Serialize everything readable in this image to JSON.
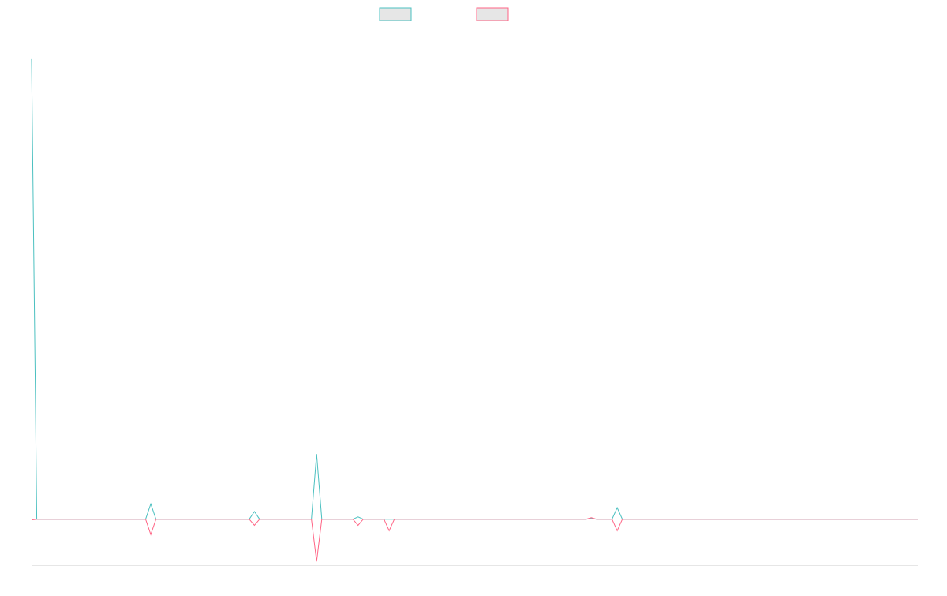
{
  "chart_data": {
    "type": "line",
    "x_count": 172,
    "ylim": [
      -60,
      640
    ],
    "grid": false,
    "legend_position": "top-center",
    "series": [
      {
        "name": "",
        "color": "#4bc0c0",
        "points": [
          [
            0,
            600
          ],
          [
            1,
            0
          ],
          [
            22,
            0
          ],
          [
            23,
            20
          ],
          [
            24,
            0
          ],
          [
            42,
            0
          ],
          [
            43,
            10
          ],
          [
            44,
            0
          ],
          [
            54,
            0
          ],
          [
            55,
            85
          ],
          [
            56,
            0
          ],
          [
            62,
            0
          ],
          [
            63,
            3
          ],
          [
            64,
            0
          ],
          [
            68,
            0
          ],
          [
            69,
            0
          ],
          [
            70,
            0
          ],
          [
            107,
            0
          ],
          [
            108,
            1
          ],
          [
            109,
            0
          ],
          [
            112,
            0
          ],
          [
            113,
            15
          ],
          [
            114,
            0
          ],
          [
            171,
            0
          ]
        ]
      },
      {
        "name": "",
        "color": "#ff6384",
        "points": [
          [
            0,
            -1
          ],
          [
            1,
            0
          ],
          [
            22,
            0
          ],
          [
            23,
            -20
          ],
          [
            24,
            0
          ],
          [
            42,
            0
          ],
          [
            43,
            -8
          ],
          [
            44,
            0
          ],
          [
            54,
            0
          ],
          [
            55,
            -55
          ],
          [
            56,
            0
          ],
          [
            62,
            0
          ],
          [
            63,
            -8
          ],
          [
            64,
            0
          ],
          [
            68,
            0
          ],
          [
            69,
            -15
          ],
          [
            70,
            0
          ],
          [
            107,
            0
          ],
          [
            108,
            2
          ],
          [
            109,
            0
          ],
          [
            112,
            0
          ],
          [
            113,
            -15
          ],
          [
            114,
            0
          ],
          [
            171,
            0
          ]
        ]
      }
    ]
  }
}
